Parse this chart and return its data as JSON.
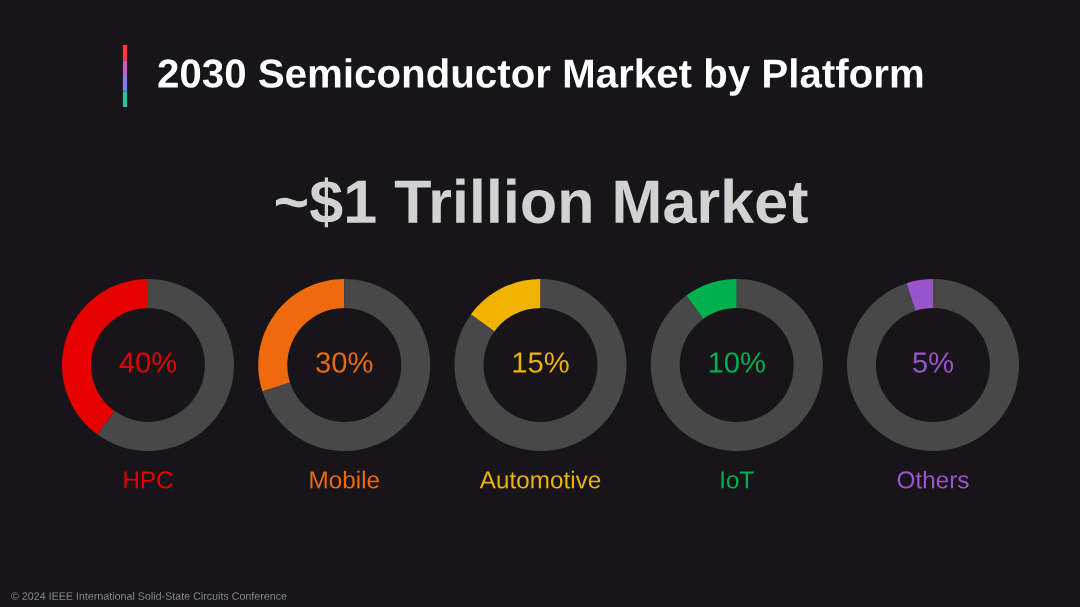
{
  "chart_data": [
    {
      "type": "other",
      "title": "2030 Semiconductor Market by Platform",
      "subtitle": "~$1 Trillion Market",
      "annotations": [
        "© 2024 IEEE International Solid-State Circuits Conference"
      ]
    },
    {
      "type": "donut",
      "title": "HPC",
      "categories": [
        null,
        null
      ],
      "values": [
        40,
        60
      ],
      "colors": [
        "#e60000",
        "#484848"
      ],
      "annotations": [
        "40%"
      ]
    },
    {
      "type": "donut",
      "title": "Mobile",
      "categories": [
        null,
        null
      ],
      "values": [
        30,
        70
      ],
      "colors": [
        "#ee6a0c",
        "#484848"
      ],
      "annotations": [
        "30%"
      ]
    },
    {
      "type": "donut",
      "title": "Automotive",
      "categories": [
        null,
        null
      ],
      "values": [
        15,
        85
      ],
      "colors": [
        "#f0b400",
        "#484848"
      ],
      "annotations": [
        "15%"
      ]
    },
    {
      "type": "donut",
      "title": "IoT",
      "categories": [
        null,
        null
      ],
      "values": [
        10,
        90
      ],
      "colors": [
        "#00b04f",
        "#484848"
      ],
      "annotations": [
        "10%"
      ]
    },
    {
      "type": "donut",
      "title": "Others",
      "categories": [
        null,
        null
      ],
      "values": [
        5,
        95
      ],
      "colors": [
        "#9955cc",
        "#484848"
      ],
      "annotations": [
        "5%"
      ]
    }
  ]
}
